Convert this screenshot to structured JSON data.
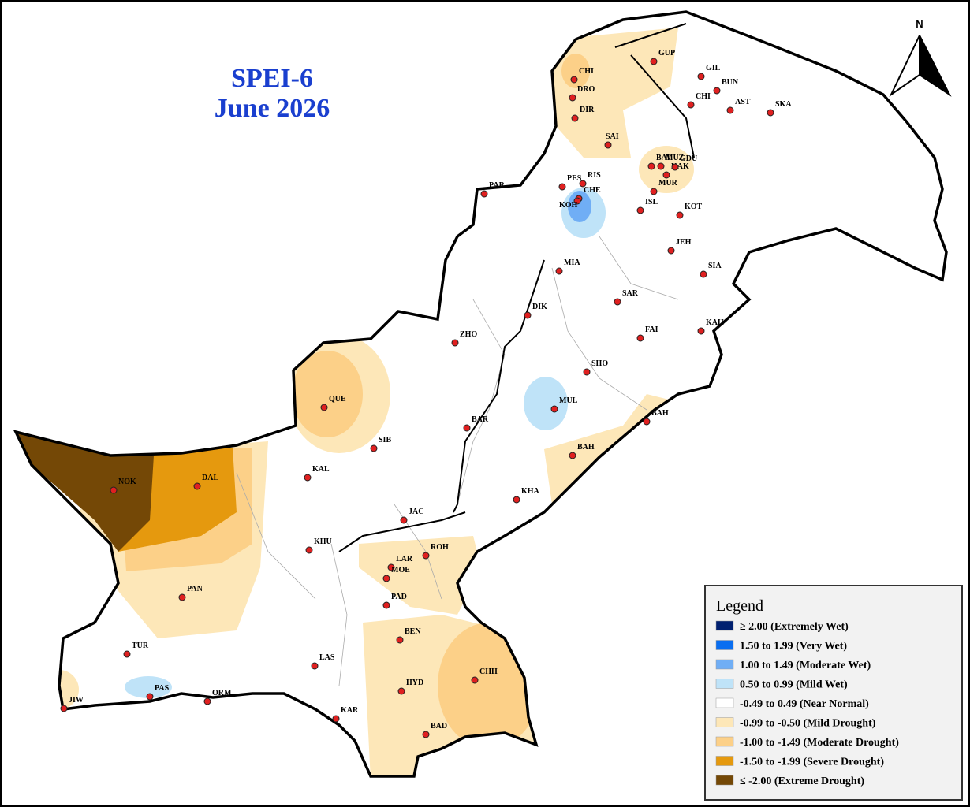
{
  "map": {
    "title": [
      "SPEI-6",
      "June 2026"
    ],
    "north": "N",
    "stations": [
      "CHI",
      "DRO",
      "DIR",
      "GUP",
      "GIL",
      "BUN",
      "CHI",
      "AST",
      "SKA",
      "SAI",
      "BAL",
      "MUZ",
      "KAK",
      "GDU",
      "MUR",
      "PAR",
      "PES",
      "RIS",
      "CHE",
      "KOH",
      "ISL",
      "KOT",
      "JEH",
      "SIA",
      "MIA",
      "SAR",
      "DIK",
      "ZHO",
      "FAI",
      "KAH",
      "SHO",
      "MUL",
      "QUE",
      "BAR",
      "BAH",
      "SIB",
      "BAH",
      "KAL",
      "NOK",
      "DAL",
      "KHA",
      "JAC",
      "KHU",
      "ROH",
      "LAR",
      "MOE",
      "PAN",
      "PAD",
      "BEN",
      "TUR",
      "LAS",
      "CHH",
      "HYD",
      "PAS",
      "ORM",
      "JIW",
      "KAR",
      "BAD"
    ],
    "legend": {
      "title": "Legend",
      "items": [
        {
          "label": "≥ 2.00 (Extremely Wet)",
          "color": "#002070"
        },
        {
          "label": "1.50 to 1.99 (Very Wet)",
          "color": "#0a6ef0"
        },
        {
          "label": "1.00 to 1.49 (Moderate Wet)",
          "color": "#70aef5"
        },
        {
          "label": "0.50 to 0.99 (Mild Wet)",
          "color": "#bfe3f8"
        },
        {
          "label": "-0.49 to 0.49 (Near Normal)",
          "color": "#ffffff"
        },
        {
          "label": "-0.99 to -0.50 (Mild Drought)",
          "color": "#fde7b8"
        },
        {
          "label": "-1.00 to -1.49 (Moderate Drought)",
          "color": "#fcd088"
        },
        {
          "label": "-1.50 to -1.99 (Severe Drought)",
          "color": "#e5990e"
        },
        {
          "label": "≤ -2.00 (Extreme Drought)",
          "color": "#744806"
        }
      ]
    }
  }
}
